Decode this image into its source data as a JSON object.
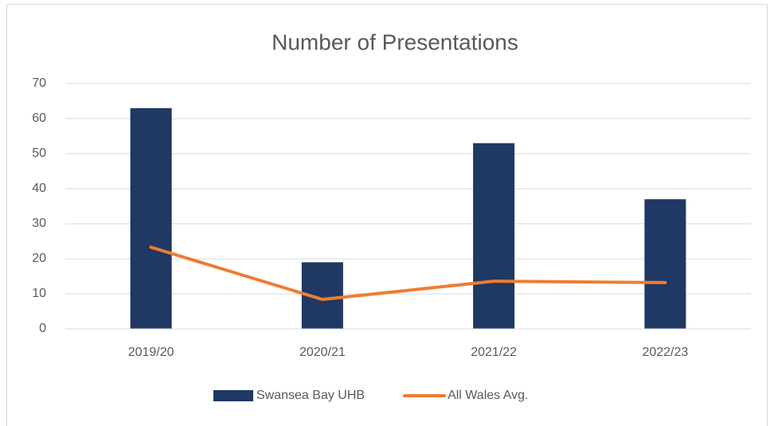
{
  "chart_data": {
    "type": "bar",
    "title": "Number of Presentations",
    "categories": [
      "2019/20",
      "2020/21",
      "2021/22",
      "2022/23"
    ],
    "series": [
      {
        "name": "Swansea Bay UHB",
        "type": "bar",
        "color": "#1f3864",
        "values": [
          63,
          19,
          53,
          37
        ]
      },
      {
        "name": "All Wales Avg.",
        "type": "line",
        "color": "#ed7d31",
        "values": [
          23.3,
          8.4,
          13.6,
          13.2
        ]
      }
    ],
    "ylim": [
      0,
      70
    ],
    "yticks": [
      0,
      10,
      20,
      30,
      40,
      50,
      60,
      70
    ],
    "grid": true,
    "legend": "bottom"
  }
}
